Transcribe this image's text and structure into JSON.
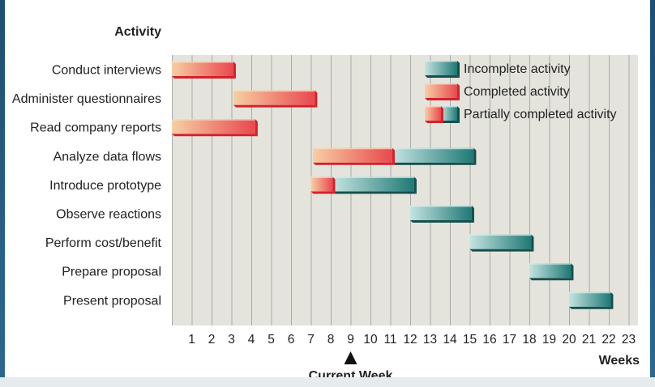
{
  "chart_data": {
    "type": "gantt",
    "column_header": "Activity",
    "xlabel": "Weeks",
    "weeks": [
      1,
      2,
      3,
      4,
      5,
      6,
      7,
      8,
      9,
      10,
      11,
      12,
      13,
      14,
      15,
      16,
      17,
      18,
      19,
      20,
      21,
      22,
      23
    ],
    "current_week": 9,
    "current_week_label": "Current Week",
    "colors": {
      "completed": "#e8484e",
      "completed_light": "#f6cfa4",
      "incomplete": "#1f7875",
      "incomplete_light": "#bfe0dd",
      "grid_bg": "#e4e4dd",
      "grid_line": "#a9a9a9"
    },
    "activities": [
      {
        "name": "Conduct interviews",
        "start": 0,
        "end": 3.1,
        "completed_until": 3.1
      },
      {
        "name": "Administer questionnaires",
        "start": 3.1,
        "end": 7.2,
        "completed_until": 7.2
      },
      {
        "name": "Read company reports",
        "start": 0,
        "end": 4.2,
        "completed_until": 4.2
      },
      {
        "name": "Analyze data flows",
        "start": 7.1,
        "end": 15.2,
        "completed_until": 11.1
      },
      {
        "name": "Introduce prototype",
        "start": 7.0,
        "end": 12.2,
        "completed_until": 8.1
      },
      {
        "name": "Observe reactions",
        "start": 12.0,
        "end": 15.1,
        "completed_until": 12.0
      },
      {
        "name": "Perform cost/benefit",
        "start": 15.0,
        "end": 18.1,
        "completed_until": 15.0
      },
      {
        "name": "Prepare proposal",
        "start": 18.0,
        "end": 20.1,
        "completed_until": 18.0
      },
      {
        "name": "Present proposal",
        "start": 20.0,
        "end": 22.1,
        "completed_until": 20.0
      }
    ],
    "legend": [
      {
        "label": "Incomplete activity",
        "kind": "incomplete"
      },
      {
        "label": "Completed activity",
        "kind": "completed"
      },
      {
        "label": "Partially completed activity",
        "kind": "partial"
      }
    ]
  }
}
